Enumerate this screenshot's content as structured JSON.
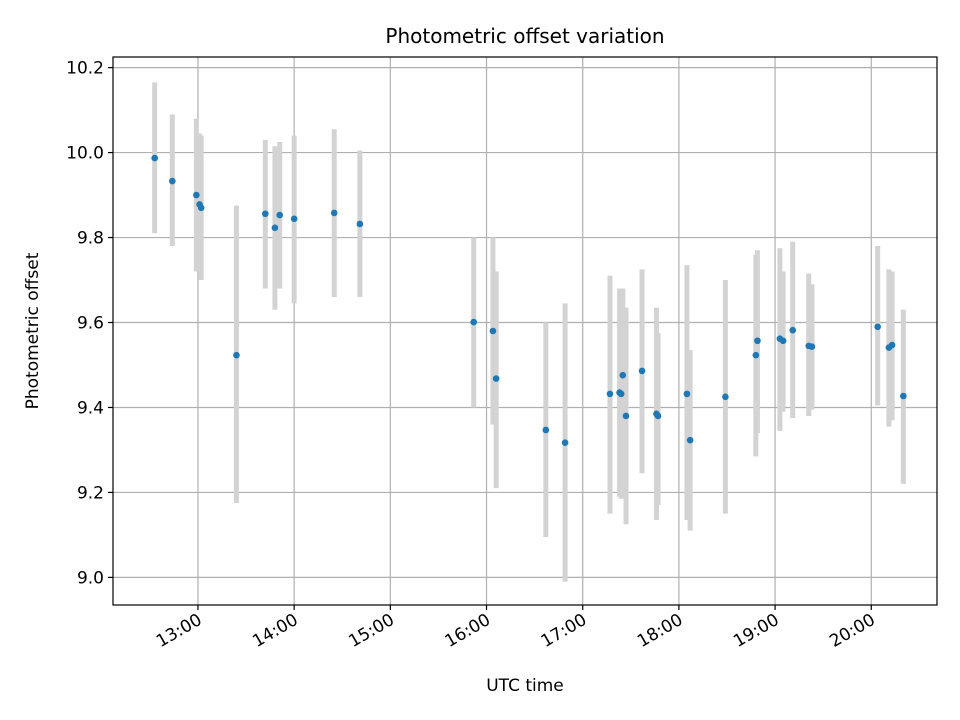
{
  "chart_data": {
    "type": "scatter",
    "title": "Photometric offset variation",
    "xlabel": "UTC time",
    "ylabel": "Photometric offset",
    "grid": true,
    "x_ticks": [
      "13:00",
      "14:00",
      "15:00",
      "16:00",
      "17:00",
      "18:00",
      "19:00",
      "20:00"
    ],
    "y_ticks": [
      "9.0",
      "9.2",
      "9.4",
      "9.6",
      "9.8",
      "10.0",
      "10.2"
    ],
    "xlim": [
      "12:07",
      "20:41"
    ],
    "ylim": [
      8.935,
      10.225
    ],
    "colors": {
      "points": "#1f77b4",
      "errorbars": "#d3d3d3",
      "grid": "#b0b0b0"
    },
    "points": [
      {
        "t": "12:33",
        "y": 9.987,
        "lo": 9.81,
        "hi": 10.165
      },
      {
        "t": "12:44",
        "y": 9.933,
        "lo": 9.78,
        "hi": 10.09
      },
      {
        "t": "12:59",
        "y": 9.9,
        "lo": 9.72,
        "hi": 10.08
      },
      {
        "t": "13:01",
        "y": 9.878,
        "lo": 9.72,
        "hi": 10.045
      },
      {
        "t": "13:02",
        "y": 9.87,
        "lo": 9.7,
        "hi": 10.04
      },
      {
        "t": "13:24",
        "y": 9.523,
        "lo": 9.175,
        "hi": 9.875
      },
      {
        "t": "13:42",
        "y": 9.856,
        "lo": 9.68,
        "hi": 10.03
      },
      {
        "t": "13:48",
        "y": 9.823,
        "lo": 9.63,
        "hi": 10.015
      },
      {
        "t": "13:51",
        "y": 9.853,
        "lo": 9.68,
        "hi": 10.025
      },
      {
        "t": "14:00",
        "y": 9.844,
        "lo": 9.645,
        "hi": 10.04
      },
      {
        "t": "14:25",
        "y": 9.858,
        "lo": 9.66,
        "hi": 10.055
      },
      {
        "t": "14:41",
        "y": 9.832,
        "lo": 9.66,
        "hi": 10.005
      },
      {
        "t": "15:52",
        "y": 9.601,
        "lo": 9.4,
        "hi": 9.8
      },
      {
        "t": "16:04",
        "y": 9.58,
        "lo": 9.36,
        "hi": 9.8
      },
      {
        "t": "16:06",
        "y": 9.468,
        "lo": 9.21,
        "hi": 9.72
      },
      {
        "t": "16:37",
        "y": 9.347,
        "lo": 9.095,
        "hi": 9.6
      },
      {
        "t": "16:49",
        "y": 9.317,
        "lo": 8.99,
        "hi": 9.645
      },
      {
        "t": "17:17",
        "y": 9.432,
        "lo": 9.15,
        "hi": 9.71
      },
      {
        "t": "17:23",
        "y": 9.435,
        "lo": 9.19,
        "hi": 9.68
      },
      {
        "t": "17:24",
        "y": 9.432,
        "lo": 9.185,
        "hi": 9.68
      },
      {
        "t": "17:25",
        "y": 9.476,
        "lo": 9.27,
        "hi": 9.68
      },
      {
        "t": "17:27",
        "y": 9.38,
        "lo": 9.125,
        "hi": 9.635
      },
      {
        "t": "17:37",
        "y": 9.486,
        "lo": 9.245,
        "hi": 9.725
      },
      {
        "t": "17:46",
        "y": 9.385,
        "lo": 9.135,
        "hi": 9.635
      },
      {
        "t": "17:47",
        "y": 9.38,
        "lo": 9.17,
        "hi": 9.575
      },
      {
        "t": "18:05",
        "y": 9.432,
        "lo": 9.135,
        "hi": 9.735
      },
      {
        "t": "18:07",
        "y": 9.323,
        "lo": 9.11,
        "hi": 9.535
      },
      {
        "t": "18:29",
        "y": 9.425,
        "lo": 9.15,
        "hi": 9.7
      },
      {
        "t": "18:48",
        "y": 9.523,
        "lo": 9.285,
        "hi": 9.76
      },
      {
        "t": "18:49",
        "y": 9.557,
        "lo": 9.34,
        "hi": 9.77
      },
      {
        "t": "19:03",
        "y": 9.562,
        "lo": 9.345,
        "hi": 9.775
      },
      {
        "t": "19:05",
        "y": 9.557,
        "lo": 9.39,
        "hi": 9.72
      },
      {
        "t": "19:11",
        "y": 9.582,
        "lo": 9.375,
        "hi": 9.79
      },
      {
        "t": "19:21",
        "y": 9.545,
        "lo": 9.38,
        "hi": 9.715
      },
      {
        "t": "19:23",
        "y": 9.543,
        "lo": 9.395,
        "hi": 9.69
      },
      {
        "t": "20:04",
        "y": 9.59,
        "lo": 9.405,
        "hi": 9.78
      },
      {
        "t": "20:11",
        "y": 9.541,
        "lo": 9.355,
        "hi": 9.725
      },
      {
        "t": "20:13",
        "y": 9.547,
        "lo": 9.37,
        "hi": 9.72
      },
      {
        "t": "20:20",
        "y": 9.427,
        "lo": 9.22,
        "hi": 9.63
      }
    ]
  }
}
